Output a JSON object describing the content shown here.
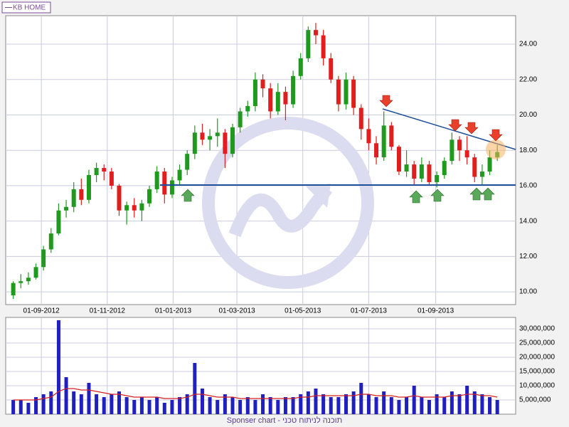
{
  "legend": "KB HOME",
  "footer": "Sponser chart - תוכנה לניתוח טכני",
  "chart_data": [
    {
      "type": "candlestick",
      "legend_entry": "KB HOME",
      "x": [
        "2012-08-06",
        "2012-08-13",
        "2012-08-20",
        "2012-08-27",
        "2012-09-03",
        "2012-09-10",
        "2012-09-17",
        "2012-09-24",
        "2012-10-01",
        "2012-10-08",
        "2012-10-15",
        "2012-10-22",
        "2012-10-29",
        "2012-11-05",
        "2012-11-12",
        "2012-11-19",
        "2012-11-26",
        "2012-12-03",
        "2012-12-10",
        "2012-12-17",
        "2012-12-24",
        "2012-12-31",
        "2013-01-07",
        "2013-01-14",
        "2013-01-21",
        "2013-01-28",
        "2013-02-04",
        "2013-02-11",
        "2013-02-18",
        "2013-02-25",
        "2013-03-04",
        "2013-03-11",
        "2013-03-18",
        "2013-03-25",
        "2013-04-01",
        "2013-04-08",
        "2013-04-15",
        "2013-04-22",
        "2013-04-29",
        "2013-05-06",
        "2013-05-13",
        "2013-05-20",
        "2013-05-27",
        "2013-06-03",
        "2013-06-10",
        "2013-06-17",
        "2013-06-24",
        "2013-07-01",
        "2013-07-08",
        "2013-07-15",
        "2013-07-22",
        "2013-07-29",
        "2013-08-05",
        "2013-08-12",
        "2013-08-19",
        "2013-08-26",
        "2013-09-02",
        "2013-09-09",
        "2013-09-16",
        "2013-09-23",
        "2013-09-30",
        "2013-10-07",
        "2013-10-14",
        "2013-10-21",
        "2013-10-28"
      ],
      "open": [
        9.8,
        10.5,
        10.6,
        10.8,
        11.4,
        12.4,
        13.3,
        14.6,
        14.8,
        15.8,
        15.2,
        16.6,
        17.0,
        16.8,
        16.0,
        14.6,
        14.9,
        14.6,
        15.0,
        15.8,
        16.8,
        15.5,
        16.3,
        16.9,
        17.8,
        19.0,
        18.6,
        18.8,
        19.0,
        17.8,
        19.3,
        20.2,
        20.5,
        22.0,
        21.5,
        20.2,
        21.3,
        20.6,
        22.2,
        23.2,
        24.8,
        24.5,
        23.2,
        22.0,
        20.6,
        22.0,
        20.4,
        19.2,
        18.4,
        17.6,
        19.4,
        18.2,
        16.8,
        17.2,
        16.4,
        17.2,
        16.2,
        16.6,
        17.4,
        18.6,
        18.0,
        17.6,
        16.5,
        16.8,
        17.6
      ],
      "high": [
        10.6,
        11.0,
        11.1,
        11.6,
        12.6,
        13.6,
        15.0,
        15.2,
        16.2,
        16.4,
        16.9,
        17.3,
        17.2,
        17.0,
        16.1,
        15.1,
        15.3,
        15.2,
        16.0,
        17.1,
        17.0,
        16.5,
        17.2,
        18.0,
        19.4,
        19.5,
        19.2,
        19.8,
        19.2,
        19.5,
        20.4,
        20.8,
        22.4,
        22.3,
        21.8,
        21.8,
        21.6,
        22.5,
        23.5,
        25.0,
        25.2,
        24.8,
        23.5,
        22.2,
        22.4,
        22.2,
        20.6,
        19.8,
        18.8,
        20.2,
        19.6,
        18.3,
        18.0,
        17.4,
        17.6,
        17.4,
        16.8,
        17.6,
        19.0,
        18.8,
        18.8,
        17.8,
        17.2,
        18.0,
        18.3
      ],
      "low": [
        9.6,
        10.2,
        10.4,
        10.7,
        11.2,
        12.2,
        13.2,
        14.2,
        14.5,
        14.9,
        15.0,
        16.2,
        16.3,
        15.8,
        14.3,
        13.8,
        14.2,
        14.0,
        14.8,
        15.6,
        15.0,
        15.3,
        16.0,
        16.6,
        17.5,
        18.3,
        18.0,
        18.2,
        17.0,
        17.6,
        19.0,
        19.9,
        20.2,
        21.0,
        19.8,
        20.0,
        19.7,
        20.4,
        22.0,
        23.0,
        24.0,
        22.8,
        21.8,
        20.2,
        20.3,
        20.0,
        18.6,
        18.0,
        17.2,
        17.4,
        18.0,
        16.6,
        16.5,
        16.0,
        16.2,
        16.0,
        15.9,
        16.4,
        17.2,
        17.4,
        17.2,
        16.2,
        16.0,
        16.6,
        17.4
      ],
      "close": [
        10.5,
        10.6,
        10.8,
        11.4,
        12.4,
        13.3,
        14.6,
        14.8,
        15.8,
        15.2,
        16.6,
        17.0,
        16.8,
        16.0,
        14.6,
        14.9,
        14.6,
        15.0,
        15.8,
        16.8,
        15.5,
        16.3,
        16.9,
        17.8,
        19.0,
        18.6,
        18.8,
        19.0,
        17.8,
        19.3,
        20.2,
        20.5,
        22.0,
        21.5,
        20.2,
        21.3,
        20.6,
        22.2,
        23.2,
        24.8,
        24.5,
        23.2,
        22.0,
        20.6,
        22.0,
        20.4,
        19.2,
        18.4,
        17.6,
        19.4,
        18.2,
        16.8,
        17.2,
        16.4,
        17.2,
        16.2,
        16.6,
        17.4,
        18.6,
        18.0,
        17.6,
        16.5,
        16.8,
        17.6,
        17.9
      ],
      "up_color": "#1f9a1f",
      "down_color": "#e01e1e",
      "xlim": [
        "2012-07-30",
        "2013-11-14"
      ],
      "xticks": [
        {
          "value": "2012-09-01",
          "label": "01-09-2012"
        },
        {
          "value": "2012-11-01",
          "label": "01-11-2012"
        },
        {
          "value": "2013-01-01",
          "label": "01-01-2013"
        },
        {
          "value": "2013-03-01",
          "label": "01-03-2013"
        },
        {
          "value": "2013-05-01",
          "label": "01-05-2013"
        },
        {
          "value": "2013-07-01",
          "label": "01-07-2013"
        },
        {
          "value": "2013-09-01",
          "label": "01-09-2013"
        }
      ],
      "ylim": [
        9.28,
        25.61
      ],
      "yticks": [
        {
          "value": 10,
          "label": "10.00"
        },
        {
          "value": 12,
          "label": "12.00"
        },
        {
          "value": 14,
          "label": "14.00"
        },
        {
          "value": 16,
          "label": "16.00"
        },
        {
          "value": 18,
          "label": "18.00"
        },
        {
          "value": 20,
          "label": "20.00"
        },
        {
          "value": 22,
          "label": "22.00"
        },
        {
          "value": 24,
          "label": "24.00"
        }
      ],
      "grid": true
    },
    {
      "type": "bar",
      "color": "#2020c0",
      "average_color": "#d42020",
      "values": [
        5000000,
        5000000,
        4000000,
        6000000,
        7000000,
        8000000,
        33000000,
        13000000,
        8000000,
        7000000,
        11000000,
        7000000,
        6000000,
        7000000,
        8000000,
        6000000,
        5000000,
        6000000,
        5000000,
        6000000,
        4000000,
        5000000,
        6000000,
        7000000,
        18000000,
        9000000,
        6000000,
        5000000,
        7000000,
        6000000,
        5000000,
        6000000,
        5000000,
        7000000,
        6000000,
        5000000,
        6000000,
        6000000,
        7000000,
        8000000,
        9000000,
        7000000,
        6000000,
        6000000,
        7000000,
        8000000,
        11000000,
        7000000,
        6000000,
        8000000,
        6000000,
        5000000,
        6000000,
        10000000,
        6000000,
        5000000,
        7000000,
        6000000,
        8000000,
        7000000,
        10000000,
        8000000,
        7000000,
        6000000,
        5000000
      ],
      "average": [
        5000000,
        5000000,
        5000000,
        5000000,
        5500000,
        6000000,
        8000000,
        9000000,
        9000000,
        8500000,
        8500000,
        8000000,
        7500000,
        7000000,
        7000000,
        6500000,
        6000000,
        6000000,
        6000000,
        6000000,
        5500000,
        5500000,
        5500000,
        6000000,
        7000000,
        7000000,
        6500000,
        6000000,
        6000000,
        6000000,
        5500000,
        5500000,
        5500000,
        5500000,
        5500000,
        5500000,
        5500000,
        5500000,
        6000000,
        6000000,
        6500000,
        6500000,
        6500000,
        6500000,
        6500000,
        6500000,
        7000000,
        7000000,
        6500000,
        6500000,
        6500000,
        6000000,
        6000000,
        6500000,
        6000000,
        6000000,
        6000000,
        6000000,
        6500000,
        6500000,
        7000000,
        7000000,
        6500000,
        6500000,
        6000000
      ],
      "ylim": [
        0,
        34000000
      ],
      "yticks": [
        {
          "value": 5000000,
          "label": "5,000,000"
        },
        {
          "value": 10000000,
          "label": "10,000,000"
        },
        {
          "value": 15000000,
          "label": "15,000,000"
        },
        {
          "value": 20000000,
          "label": "20,000,000"
        },
        {
          "value": 25000000,
          "label": "25,000,000"
        },
        {
          "value": 30000000,
          "label": "30,000,000"
        }
      ],
      "grid": true
    }
  ]
}
